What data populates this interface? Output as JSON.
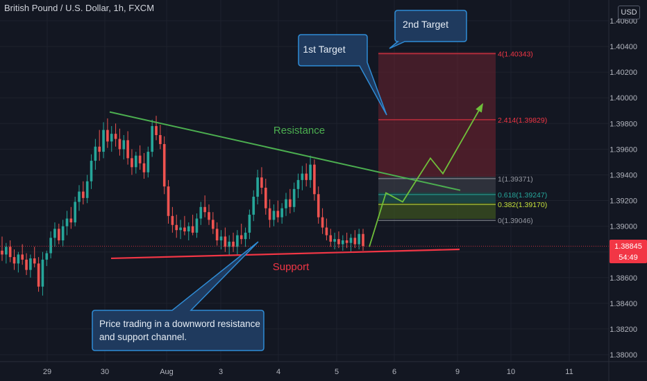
{
  "header": {
    "title": "British Pound / U.S. Dollar, 1h, FXCM",
    "currency": "USD"
  },
  "price_badge": {
    "price": "1.38845",
    "countdown": "54:49",
    "color": "#f23645"
  },
  "chart_data": {
    "type": "candlestick",
    "title": "British Pound / U.S. Dollar, 1h, FXCM",
    "x_tick_labels": [
      "29",
      "30",
      "Aug",
      "3",
      "4",
      "5",
      "6",
      "9",
      "10",
      "11"
    ],
    "y_tick_labels": [
      "1.38000",
      "1.38200",
      "1.38400",
      "1.38600",
      "1.38800",
      "1.39000",
      "1.39200",
      "1.39400",
      "1.39600",
      "1.39800",
      "1.40000",
      "1.40200",
      "1.40400",
      "1.40600"
    ],
    "ylim": [
      1.3797,
      1.4068
    ],
    "last_price": 1.38845,
    "resistance_line": {
      "label": "Resistance",
      "from_price": 1.3989,
      "to_price": 1.3928,
      "color": "#4caf50"
    },
    "support_line": {
      "label": "Support",
      "from_price": 1.3875,
      "to_price": 1.3882,
      "color": "#f23645"
    },
    "fibonacci": [
      {
        "ratio": "4",
        "price": 1.40343,
        "label": "4(1.40343)",
        "color": "#f23645"
      },
      {
        "ratio": "2.414",
        "price": 1.39829,
        "label": "2.414(1.39829)",
        "color": "#f23645"
      },
      {
        "ratio": "1",
        "price": 1.39371,
        "label": "1(1.39371)",
        "color": "#9598a1"
      },
      {
        "ratio": "0.618",
        "price": 1.39247,
        "label": "0.618(1.39247)",
        "color": "#26a69a"
      },
      {
        "ratio": "0.382",
        "price": 1.3917,
        "label": "0.382(1.39170)",
        "color": "#c6e03a"
      },
      {
        "ratio": "0",
        "price": 1.39046,
        "label": "0(1.39046)",
        "color": "#9598a1"
      }
    ],
    "projection_path_prices": [
      1.3884,
      1.3926,
      1.3919,
      1.3953,
      1.3941,
      1.3995
    ],
    "candles": [
      {
        "o": 1.3881,
        "h": 1.3892,
        "l": 1.3873,
        "c": 1.3878
      },
      {
        "o": 1.3878,
        "h": 1.3887,
        "l": 1.3871,
        "c": 1.3884
      },
      {
        "o": 1.3884,
        "h": 1.3889,
        "l": 1.3872,
        "c": 1.3876
      },
      {
        "o": 1.3876,
        "h": 1.3882,
        "l": 1.3866,
        "c": 1.3871
      },
      {
        "o": 1.3871,
        "h": 1.388,
        "l": 1.3864,
        "c": 1.3878
      },
      {
        "o": 1.3878,
        "h": 1.3886,
        "l": 1.387,
        "c": 1.3874
      },
      {
        "o": 1.3874,
        "h": 1.3879,
        "l": 1.3862,
        "c": 1.3866
      },
      {
        "o": 1.3866,
        "h": 1.3878,
        "l": 1.386,
        "c": 1.3875
      },
      {
        "o": 1.3875,
        "h": 1.3884,
        "l": 1.3868,
        "c": 1.3871
      },
      {
        "o": 1.3871,
        "h": 1.3876,
        "l": 1.3849,
        "c": 1.3853
      },
      {
        "o": 1.3853,
        "h": 1.388,
        "l": 1.3846,
        "c": 1.3874
      },
      {
        "o": 1.3874,
        "h": 1.3881,
        "l": 1.3869,
        "c": 1.3879
      },
      {
        "o": 1.3879,
        "h": 1.3896,
        "l": 1.3875,
        "c": 1.3891
      },
      {
        "o": 1.3891,
        "h": 1.3903,
        "l": 1.3884,
        "c": 1.3898
      },
      {
        "o": 1.3898,
        "h": 1.3902,
        "l": 1.3886,
        "c": 1.3889
      },
      {
        "o": 1.3889,
        "h": 1.3905,
        "l": 1.3884,
        "c": 1.39
      },
      {
        "o": 1.39,
        "h": 1.3912,
        "l": 1.3893,
        "c": 1.3906
      },
      {
        "o": 1.3906,
        "h": 1.3915,
        "l": 1.3898,
        "c": 1.3903
      },
      {
        "o": 1.3903,
        "h": 1.3923,
        "l": 1.39,
        "c": 1.3919
      },
      {
        "o": 1.3919,
        "h": 1.3932,
        "l": 1.3912,
        "c": 1.3927
      },
      {
        "o": 1.3927,
        "h": 1.3935,
        "l": 1.3917,
        "c": 1.3922
      },
      {
        "o": 1.3922,
        "h": 1.394,
        "l": 1.3918,
        "c": 1.3935
      },
      {
        "o": 1.3935,
        "h": 1.3956,
        "l": 1.3929,
        "c": 1.3951
      },
      {
        "o": 1.3951,
        "h": 1.3968,
        "l": 1.3944,
        "c": 1.3962
      },
      {
        "o": 1.3962,
        "h": 1.3975,
        "l": 1.3951,
        "c": 1.3958
      },
      {
        "o": 1.3958,
        "h": 1.3981,
        "l": 1.3953,
        "c": 1.3975
      },
      {
        "o": 1.3975,
        "h": 1.3984,
        "l": 1.3961,
        "c": 1.3966
      },
      {
        "o": 1.3966,
        "h": 1.3978,
        "l": 1.3958,
        "c": 1.3972
      },
      {
        "o": 1.3972,
        "h": 1.398,
        "l": 1.3962,
        "c": 1.3968
      },
      {
        "o": 1.3968,
        "h": 1.3976,
        "l": 1.3955,
        "c": 1.396
      },
      {
        "o": 1.396,
        "h": 1.3971,
        "l": 1.3952,
        "c": 1.3967
      },
      {
        "o": 1.3967,
        "h": 1.3974,
        "l": 1.3948,
        "c": 1.3953
      },
      {
        "o": 1.3953,
        "h": 1.396,
        "l": 1.394,
        "c": 1.3946
      },
      {
        "o": 1.3946,
        "h": 1.3958,
        "l": 1.3941,
        "c": 1.3955
      },
      {
        "o": 1.3955,
        "h": 1.3963,
        "l": 1.3944,
        "c": 1.3949
      },
      {
        "o": 1.3949,
        "h": 1.3957,
        "l": 1.3937,
        "c": 1.3942
      },
      {
        "o": 1.3942,
        "h": 1.3962,
        "l": 1.3938,
        "c": 1.3958
      },
      {
        "o": 1.3958,
        "h": 1.3983,
        "l": 1.3954,
        "c": 1.3978
      },
      {
        "o": 1.3978,
        "h": 1.3986,
        "l": 1.3967,
        "c": 1.3971
      },
      {
        "o": 1.3971,
        "h": 1.3979,
        "l": 1.396,
        "c": 1.3964
      },
      {
        "o": 1.3964,
        "h": 1.397,
        "l": 1.3925,
        "c": 1.3931
      },
      {
        "o": 1.3931,
        "h": 1.3936,
        "l": 1.3902,
        "c": 1.3908
      },
      {
        "o": 1.3908,
        "h": 1.3915,
        "l": 1.3895,
        "c": 1.3901
      },
      {
        "o": 1.3901,
        "h": 1.3909,
        "l": 1.3891,
        "c": 1.3897
      },
      {
        "o": 1.3897,
        "h": 1.3905,
        "l": 1.389,
        "c": 1.3899
      },
      {
        "o": 1.3899,
        "h": 1.3908,
        "l": 1.3893,
        "c": 1.3896
      },
      {
        "o": 1.3896,
        "h": 1.3903,
        "l": 1.3889,
        "c": 1.39
      },
      {
        "o": 1.39,
        "h": 1.3909,
        "l": 1.3893,
        "c": 1.3895
      },
      {
        "o": 1.3895,
        "h": 1.391,
        "l": 1.3891,
        "c": 1.3906
      },
      {
        "o": 1.3906,
        "h": 1.3919,
        "l": 1.3901,
        "c": 1.3915
      },
      {
        "o": 1.3915,
        "h": 1.3924,
        "l": 1.3907,
        "c": 1.3911
      },
      {
        "o": 1.3911,
        "h": 1.3917,
        "l": 1.3901,
        "c": 1.3905
      },
      {
        "o": 1.3905,
        "h": 1.3911,
        "l": 1.3894,
        "c": 1.3898
      },
      {
        "o": 1.3898,
        "h": 1.3903,
        "l": 1.3885,
        "c": 1.3889
      },
      {
        "o": 1.3889,
        "h": 1.3897,
        "l": 1.3882,
        "c": 1.3892
      },
      {
        "o": 1.3892,
        "h": 1.3899,
        "l": 1.388,
        "c": 1.3884
      },
      {
        "o": 1.3884,
        "h": 1.3893,
        "l": 1.3877,
        "c": 1.3888
      },
      {
        "o": 1.3888,
        "h": 1.3895,
        "l": 1.388,
        "c": 1.3884
      },
      {
        "o": 1.3884,
        "h": 1.3897,
        "l": 1.3878,
        "c": 1.3893
      },
      {
        "o": 1.3893,
        "h": 1.3902,
        "l": 1.3886,
        "c": 1.389
      },
      {
        "o": 1.389,
        "h": 1.3899,
        "l": 1.3884,
        "c": 1.3895
      },
      {
        "o": 1.3895,
        "h": 1.3913,
        "l": 1.389,
        "c": 1.3909
      },
      {
        "o": 1.3909,
        "h": 1.3928,
        "l": 1.3904,
        "c": 1.3923
      },
      {
        "o": 1.3923,
        "h": 1.3944,
        "l": 1.3917,
        "c": 1.3938
      },
      {
        "o": 1.3938,
        "h": 1.3946,
        "l": 1.3925,
        "c": 1.393
      },
      {
        "o": 1.393,
        "h": 1.3937,
        "l": 1.3909,
        "c": 1.3914
      },
      {
        "o": 1.3914,
        "h": 1.3921,
        "l": 1.3899,
        "c": 1.3905
      },
      {
        "o": 1.3905,
        "h": 1.3917,
        "l": 1.39,
        "c": 1.3912
      },
      {
        "o": 1.3912,
        "h": 1.392,
        "l": 1.3903,
        "c": 1.3907
      },
      {
        "o": 1.3907,
        "h": 1.3918,
        "l": 1.3902,
        "c": 1.3914
      },
      {
        "o": 1.3914,
        "h": 1.3926,
        "l": 1.3908,
        "c": 1.3921
      },
      {
        "o": 1.3921,
        "h": 1.3929,
        "l": 1.391,
        "c": 1.3915
      },
      {
        "o": 1.3915,
        "h": 1.3934,
        "l": 1.3911,
        "c": 1.3929
      },
      {
        "o": 1.3929,
        "h": 1.3941,
        "l": 1.3922,
        "c": 1.3936
      },
      {
        "o": 1.3936,
        "h": 1.3947,
        "l": 1.3928,
        "c": 1.3941
      },
      {
        "o": 1.3941,
        "h": 1.3949,
        "l": 1.3931,
        "c": 1.3936
      },
      {
        "o": 1.3936,
        "h": 1.3955,
        "l": 1.393,
        "c": 1.3948
      },
      {
        "o": 1.3948,
        "h": 1.3952,
        "l": 1.392,
        "c": 1.3925
      },
      {
        "o": 1.3925,
        "h": 1.3931,
        "l": 1.3902,
        "c": 1.3907
      },
      {
        "o": 1.3907,
        "h": 1.3914,
        "l": 1.3894,
        "c": 1.3899
      },
      {
        "o": 1.3899,
        "h": 1.3906,
        "l": 1.3889,
        "c": 1.3893
      },
      {
        "o": 1.3893,
        "h": 1.3898,
        "l": 1.3884,
        "c": 1.3888
      },
      {
        "o": 1.3888,
        "h": 1.3895,
        "l": 1.3882,
        "c": 1.389
      },
      {
        "o": 1.389,
        "h": 1.3896,
        "l": 1.3883,
        "c": 1.3886
      },
      {
        "o": 1.3886,
        "h": 1.3893,
        "l": 1.3881,
        "c": 1.3889
      },
      {
        "o": 1.3889,
        "h": 1.3895,
        "l": 1.3883,
        "c": 1.3887
      },
      {
        "o": 1.3887,
        "h": 1.3894,
        "l": 1.388,
        "c": 1.3891
      },
      {
        "o": 1.3891,
        "h": 1.3897,
        "l": 1.3883,
        "c": 1.3886
      },
      {
        "o": 1.3886,
        "h": 1.3898,
        "l": 1.3882,
        "c": 1.3894
      },
      {
        "o": 1.3894,
        "h": 1.3898,
        "l": 1.3881,
        "c": 1.38845
      }
    ]
  },
  "annotations": {
    "resistance_label": "Resistance",
    "support_label": "Support",
    "callout_1st_target": "1st Target",
    "callout_2nd_target": "2nd Target",
    "callout_channel_line1": "Price trading in a downword resistance",
    "callout_channel_line2": "and support channel."
  },
  "colors": {
    "background": "#131722",
    "up": "#26a69a",
    "down": "#ef5350",
    "callout_fill": "#1f3a5e",
    "callout_border": "#2f8cd6"
  }
}
